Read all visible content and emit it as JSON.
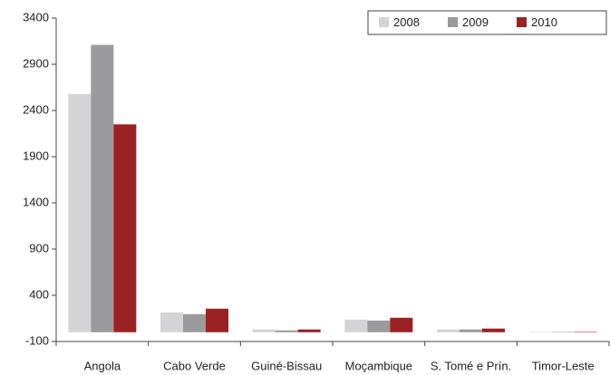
{
  "chart_data": {
    "type": "bar",
    "categories": [
      "Angola",
      "Cabo Verde",
      "Guiné-Bissau",
      "Moçambique",
      "S. Tomé e Prín.",
      "Timor-Leste"
    ],
    "series": [
      {
        "name": "2008",
        "color": "#d4d4d6",
        "values": [
          2580,
          215,
          30,
          137,
          30,
          5
        ]
      },
      {
        "name": "2009",
        "color": "#9b9b9e",
        "values": [
          3110,
          196,
          20,
          127,
          30,
          5
        ]
      },
      {
        "name": "2010",
        "color": "#9a2224",
        "values": [
          2250,
          255,
          30,
          157,
          40,
          5
        ]
      }
    ],
    "ylim": [
      -100,
      3400
    ],
    "yticks": [
      -100,
      400,
      900,
      1400,
      1900,
      2400,
      2900,
      3400
    ],
    "grid": false,
    "legend": "top-right"
  }
}
